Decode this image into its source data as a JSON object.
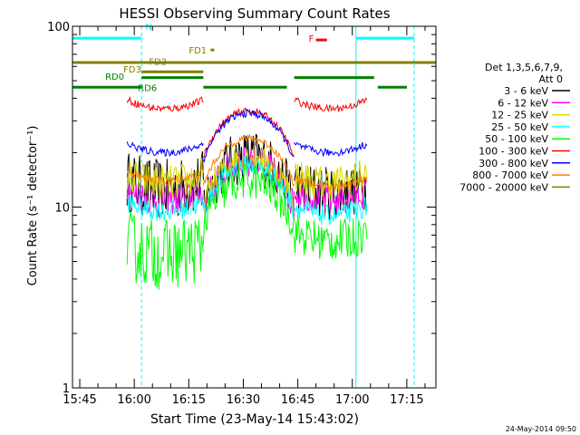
{
  "chart_data": {
    "type": "line",
    "title": "HESSI Observing Summary Count Rates",
    "xlabel": "Start Time (23-May-14 15:43:02)",
    "ylabel": "Count Rate (s⁻¹ detector⁻¹)",
    "y_scale": "log",
    "ylim": [
      1,
      100
    ],
    "xlim": [
      "15:43",
      "17:23"
    ],
    "x_ticks": [
      "15:45",
      "16:00",
      "16:15",
      "16:30",
      "16:45",
      "17:00",
      "17:15"
    ],
    "y_ticks": [
      "1",
      "10",
      "100"
    ],
    "legend_title": [
      "Det 1,3,5,6,7,9,",
      "Att 0"
    ],
    "legend_position": "right",
    "footer_timestamp": "24-May-2014 09:50",
    "series": [
      {
        "name": "3 - 6 keV",
        "color": "#000000",
        "segments": [
          {
            "start": "15:58",
            "end": "16:19",
            "base": 12.5,
            "scatter": 2.2
          },
          {
            "start": "16:19",
            "end": "16:44",
            "peak": 19,
            "scatter": 2.0
          },
          {
            "start": "16:44",
            "end": "17:04",
            "base": 12,
            "scatter": 2.0
          }
        ]
      },
      {
        "name": "6 - 12 keV",
        "color": "#ff00ff",
        "segments": [
          {
            "start": "15:58",
            "end": "16:19",
            "base": 11,
            "scatter": 1.5
          },
          {
            "start": "16:19",
            "end": "16:44",
            "peak": 18,
            "scatter": 1.5
          },
          {
            "start": "16:44",
            "end": "17:04",
            "base": 11,
            "scatter": 1.5
          }
        ]
      },
      {
        "name": "12 - 25 keV",
        "color": "#d8d800",
        "segments": [
          {
            "start": "15:58",
            "end": "16:19",
            "base": 13.5,
            "scatter": 1.6
          },
          {
            "start": "16:19",
            "end": "16:44",
            "peak": 19,
            "scatter": 1.4
          },
          {
            "start": "16:44",
            "end": "17:04",
            "base": 13.5,
            "scatter": 1.6
          }
        ]
      },
      {
        "name": "25 - 50 keV",
        "color": "#00ffff",
        "segments": [
          {
            "start": "15:58",
            "end": "16:19",
            "base": 9.5,
            "scatter": 1.3
          },
          {
            "start": "16:19",
            "end": "16:44",
            "peak": 17,
            "scatter": 1.3
          },
          {
            "start": "16:44",
            "end": "17:04",
            "base": 9.0,
            "scatter": 1.3
          }
        ]
      },
      {
        "name": "50 - 100 keV",
        "color": "#00ff00",
        "segments": [
          {
            "start": "15:58",
            "end": "16:19",
            "base": 5.5,
            "scatter": 2.5
          },
          {
            "start": "16:19",
            "end": "16:44",
            "peak": 14,
            "scatter": 1.6
          },
          {
            "start": "16:44",
            "end": "17:04",
            "base": 6.5,
            "scatter": 1.7
          }
        ]
      },
      {
        "name": "100 - 300 keV",
        "color": "#ff0000",
        "segments": [
          {
            "start": "15:58",
            "end": "16:19",
            "base": 35,
            "scatter": 1.1
          },
          {
            "start": "16:19",
            "end": "16:44",
            "peak": 34,
            "scatter": 1.1
          },
          {
            "start": "16:44",
            "end": "17:04",
            "base": 35,
            "scatter": 1.1
          }
        ]
      },
      {
        "name": "300 - 800 keV",
        "color": "#0000ff",
        "segments": [
          {
            "start": "15:58",
            "end": "16:19",
            "base": 20,
            "scatter": 1.1
          },
          {
            "start": "16:19",
            "end": "16:44",
            "peak": 33,
            "scatter": 1.1
          },
          {
            "start": "16:44",
            "end": "17:04",
            "base": 20,
            "scatter": 1.1
          }
        ]
      },
      {
        "name": "800 - 7000 keV",
        "color": "#ff8000",
        "segments": [
          {
            "start": "15:58",
            "end": "16:19",
            "base": 14,
            "scatter": 1.1
          },
          {
            "start": "16:19",
            "end": "16:44",
            "peak": 24,
            "scatter": 1.1
          },
          {
            "start": "16:44",
            "end": "17:04",
            "base": 13,
            "scatter": 1.1
          }
        ]
      },
      {
        "name": "7000 - 20000 keV",
        "color": "#808000",
        "segments": []
      }
    ],
    "flag_bars": [
      {
        "label": "N",
        "color": "#00ffff",
        "label_time": "16:03",
        "label_value": 100,
        "segments": [
          [
            "15:43",
            "16:02"
          ],
          [
            "17:01",
            "17:17"
          ]
        ],
        "level": 86
      },
      {
        "label": "F",
        "color": "#ff0000",
        "label_time": "16:48",
        "label_value": 86,
        "segments": [
          [
            "16:50",
            "16:53"
          ]
        ],
        "level": 84
      },
      {
        "label": "FD1",
        "color": "#808000",
        "label_time": "16:15",
        "label_value": 74,
        "segments": [
          [
            "16:21",
            "16:22"
          ]
        ],
        "level": 74
      },
      {
        "label": "FD2",
        "color": "#808000",
        "label_time": "16:04",
        "label_value": 64,
        "segments": [
          [
            "15:43",
            "16:20"
          ],
          [
            "16:20",
            "17:23"
          ]
        ],
        "level": 63
      },
      {
        "label": "FD3",
        "color": "#808000",
        "label_time": "15:57",
        "label_value": 58,
        "segments": [
          [
            "16:02",
            "16:19"
          ]
        ],
        "level": 56
      },
      {
        "label": "RD0",
        "color": "#008000",
        "label_time": "15:52",
        "label_value": 53,
        "segments": [
          [
            "16:02",
            "16:19"
          ],
          [
            "16:44",
            "17:06"
          ]
        ],
        "level": 52
      },
      {
        "label": "RD6",
        "color": "#008000",
        "label_time": "16:01",
        "label_value": 46,
        "segments": [
          [
            "15:43",
            "16:02"
          ],
          [
            "16:19",
            "16:42"
          ],
          [
            "17:07",
            "17:15"
          ]
        ],
        "level": 46
      }
    ],
    "vertical_markers": [
      {
        "time": "15:43",
        "style": "solid",
        "color": "#00ffff"
      },
      {
        "time": "16:02",
        "style": "dashed",
        "color": "#00ffff"
      },
      {
        "time": "17:01",
        "style": "solid",
        "color": "#00ffff"
      },
      {
        "time": "17:17",
        "style": "dashed",
        "color": "#00ffff"
      }
    ]
  }
}
